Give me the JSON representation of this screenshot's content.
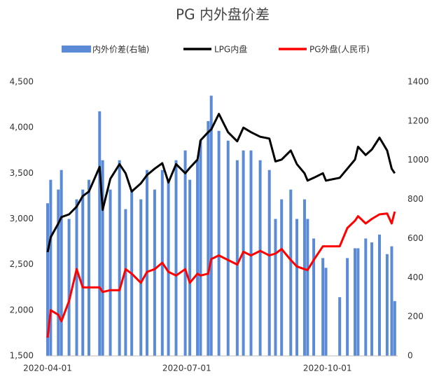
{
  "chart_data": {
    "type": "bar-line",
    "title": "PG 内外盘价差",
    "x": [
      "2020-04-01",
      "2020-04-03",
      "2020-04-08",
      "2020-04-10",
      "2020-04-15",
      "2020-04-20",
      "2020-04-24",
      "2020-04-28",
      "2020-05-05",
      "2020-05-07",
      "2020-05-12",
      "2020-05-18",
      "2020-05-22",
      "2020-05-26",
      "2020-06-01",
      "2020-06-05",
      "2020-06-10",
      "2020-06-15",
      "2020-06-19",
      "2020-06-24",
      "2020-06-30",
      "2020-07-03",
      "2020-07-08",
      "2020-07-10",
      "2020-07-15",
      "2020-07-17",
      "2020-07-22",
      "2020-07-28",
      "2020-08-03",
      "2020-08-07",
      "2020-08-12",
      "2020-08-18",
      "2020-08-24",
      "2020-08-28",
      "2020-09-01",
      "2020-09-07",
      "2020-09-11",
      "2020-09-16",
      "2020-09-18",
      "2020-09-22",
      "2020-09-28",
      "2020-09-30",
      "2020-10-09",
      "2020-10-14",
      "2020-10-19",
      "2020-10-21",
      "2020-10-26",
      "2020-10-30",
      "2020-11-04",
      "2020-11-09",
      "2020-11-12",
      "2020-11-14"
    ],
    "series": [
      {
        "name": "内外价差(右轴)",
        "type": "bar",
        "axis": "y2",
        "color": "#5b8bd6",
        "values": [
          780,
          900,
          850,
          950,
          700,
          800,
          850,
          900,
          1250,
          1000,
          850,
          1000,
          750,
          850,
          800,
          950,
          850,
          950,
          900,
          1000,
          1050,
          900,
          1000,
          1100,
          1200,
          1330,
          1150,
          1100,
          1000,
          1050,
          1050,
          1000,
          950,
          700,
          800,
          850,
          700,
          800,
          700,
          600,
          500,
          450,
          300,
          500,
          550,
          550,
          600,
          580,
          620,
          520,
          560,
          280
        ]
      },
      {
        "name": "LPG内盘",
        "type": "line",
        "color": "#000000",
        "values": [
          2636,
          2800,
          2950,
          3020,
          3050,
          3135,
          3250,
          3300,
          3570,
          3100,
          3440,
          3600,
          3500,
          3300,
          3390,
          3480,
          3550,
          3610,
          3400,
          3600,
          3500,
          3560,
          3650,
          3860,
          3950,
          3980,
          4150,
          3950,
          3850,
          4000,
          3950,
          3900,
          3880,
          3630,
          3650,
          3750,
          3600,
          3500,
          3420,
          3450,
          3500,
          3420,
          3450,
          3550,
          3650,
          3790,
          3700,
          3760,
          3890,
          3750,
          3550,
          3500
        ]
      },
      {
        "name": "PG外盘(人民币)",
        "type": "line",
        "color": "#ff0000",
        "values": [
          1700,
          2000,
          1950,
          1880,
          2100,
          2450,
          2250,
          2250,
          2250,
          2200,
          2220,
          2220,
          2450,
          2400,
          2300,
          2420,
          2450,
          2520,
          2420,
          2380,
          2450,
          2300,
          2400,
          2380,
          2400,
          2560,
          2600,
          2550,
          2500,
          2640,
          2600,
          2650,
          2600,
          2620,
          2670,
          2550,
          2480,
          2450,
          2440,
          2550,
          2700,
          2700,
          2700,
          2900,
          2980,
          3030,
          2950,
          3000,
          3050,
          3060,
          2950,
          3080
        ]
      }
    ],
    "xlim": [
      "2020-04-01",
      "2020-11-15"
    ],
    "xticks": [
      "2020-04-01",
      "2020-07-01",
      "2020-10-01"
    ],
    "ylim": [
      1500,
      4500
    ],
    "yticks": [
      {
        "value": 1500,
        "label": "1,500"
      },
      {
        "value": 2000,
        "label": "2,000"
      },
      {
        "value": 2500,
        "label": "2,500"
      },
      {
        "value": 3000,
        "label": "3,000"
      },
      {
        "value": 3500,
        "label": "3,500"
      },
      {
        "value": 4000,
        "label": "4,000"
      },
      {
        "value": 4500,
        "label": "4,500"
      }
    ],
    "y2lim": [
      0,
      1400
    ],
    "y2ticks": [
      0,
      200,
      400,
      600,
      800,
      1000,
      1200,
      1400
    ],
    "legend": "top"
  }
}
